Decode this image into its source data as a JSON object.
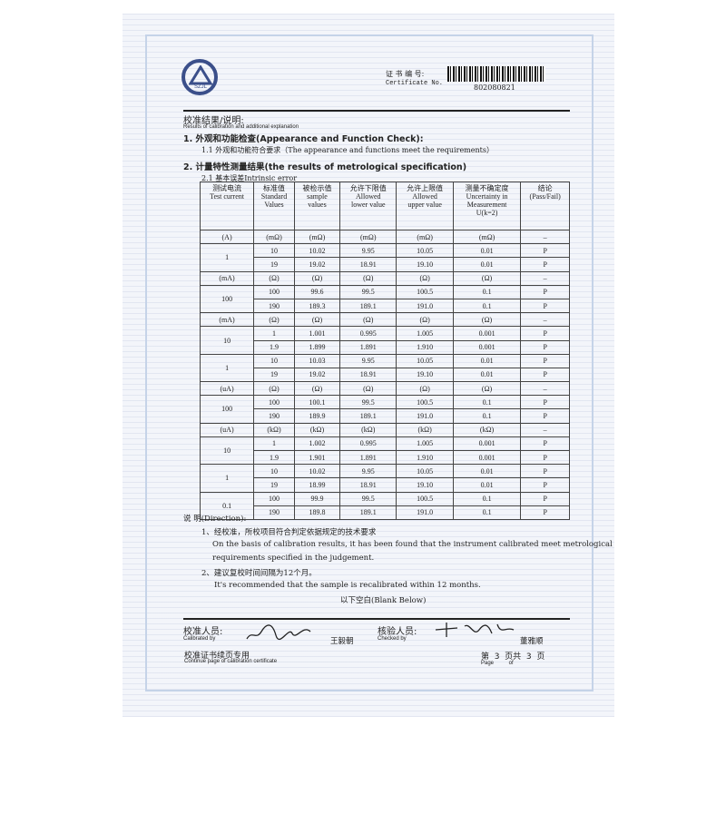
{
  "header": {
    "logo_text": "SZJL",
    "cert_label_cn": "证 书 编 号:",
    "cert_label_en": "Certificate No.",
    "cert_number": "802080821"
  },
  "results": {
    "title_cn": "校准结果/说明:",
    "title_en": "Results of calibration and additional explanation",
    "s1": "1. 外观和功能检查(Appearance and Function Check):",
    "s1_1": "1.1  外观和功能符合要求（The appearance and functions meet the requirements）",
    "s2": "2. 计量特性测量结果(the results of metrological specification)",
    "s2_1": "2.1  基本误差Intrinsic error"
  },
  "table": {
    "headers": [
      "测试电流\nTest current",
      "标准值\nStandard\nValues",
      "被检示值\nsample\nvalues",
      "允许下限值\nAllowed\nlower value",
      "允许上限值\nAllowed\nupper value",
      "测量不确定度\nUncertainty in\nMeasurement\nU(k=2)",
      "结论\n(Pass/Fail)"
    ],
    "blocks": [
      {
        "units": [
          "(A)",
          "(mΩ)",
          "(mΩ)",
          "(mΩ)",
          "(mΩ)",
          "(mΩ)",
          "–"
        ],
        "groups": [
          {
            "current": "1",
            "rows": [
              [
                "10",
                "10.02",
                "9.95",
                "10.05",
                "0.01",
                "P"
              ],
              [
                "19",
                "19.02",
                "18.91",
                "19.10",
                "0.01",
                "P"
              ]
            ]
          }
        ]
      },
      {
        "units": [
          "(mA)",
          "(Ω)",
          "(Ω)",
          "(Ω)",
          "(Ω)",
          "(Ω)",
          "–"
        ],
        "groups": [
          {
            "current": "100",
            "rows": [
              [
                "100",
                "99.6",
                "99.5",
                "100.5",
                "0.1",
                "P"
              ],
              [
                "190",
                "189.3",
                "189.1",
                "191.0",
                "0.1",
                "P"
              ]
            ]
          }
        ]
      },
      {
        "units": [
          "(mA)",
          "(Ω)",
          "(Ω)",
          "(Ω)",
          "(Ω)",
          "(Ω)",
          "–"
        ],
        "groups": [
          {
            "current": "10",
            "rows": [
              [
                "1",
                "1.001",
                "0.995",
                "1.005",
                "0.001",
                "P"
              ],
              [
                "1.9",
                "1.899",
                "1.891",
                "1.910",
                "0.001",
                "P"
              ]
            ]
          },
          {
            "current": "1",
            "rows": [
              [
                "10",
                "10.03",
                "9.95",
                "10.05",
                "0.01",
                "P"
              ],
              [
                "19",
                "19.02",
                "18.91",
                "19.10",
                "0.01",
                "P"
              ]
            ]
          }
        ]
      },
      {
        "units": [
          "(uA)",
          "(Ω)",
          "(Ω)",
          "(Ω)",
          "(Ω)",
          "(Ω)",
          "–"
        ],
        "groups": [
          {
            "current": "100",
            "rows": [
              [
                "100",
                "100.1",
                "99.5",
                "100.5",
                "0.1",
                "P"
              ],
              [
                "190",
                "189.9",
                "189.1",
                "191.0",
                "0.1",
                "P"
              ]
            ]
          }
        ]
      },
      {
        "units": [
          "(uA)",
          "(kΩ)",
          "(kΩ)",
          "(kΩ)",
          "(kΩ)",
          "(kΩ)",
          "–"
        ],
        "groups": [
          {
            "current": "10",
            "rows": [
              [
                "1",
                "1.002",
                "0.995",
                "1.005",
                "0.001",
                "P"
              ],
              [
                "1.9",
                "1.901",
                "1.891",
                "1.910",
                "0.001",
                "P"
              ]
            ]
          },
          {
            "current": "1",
            "rows": [
              [
                "10",
                "10.02",
                "9.95",
                "10.05",
                "0.01",
                "P"
              ],
              [
                "19",
                "18.99",
                "18.91",
                "19.10",
                "0.01",
                "P"
              ]
            ]
          },
          {
            "current": "0.1",
            "rows": [
              [
                "100",
                "99.9",
                "99.5",
                "100.5",
                "0.1",
                "P"
              ],
              [
                "190",
                "189.8",
                "189.1",
                "191.0",
                "0.1",
                "P"
              ]
            ]
          }
        ]
      }
    ]
  },
  "direction": {
    "title": "说 明(Direction):",
    "item1_cn": "1、经校准，所校项目符合判定依据规定的技术要求",
    "item1_en_1": "On the basis of calibration results, it has been found that the instrument calibrated meet metrological",
    "item1_en_2": "requirements specified in the judgement.",
    "item2_cn": "2、建议复校时间间隔为12个月。",
    "item2_en": "It's recommended that the sample is recalibrated within 12 months.",
    "blank": "以下空白(Blank Below)"
  },
  "footer": {
    "calibrated_cn": "校准人员:",
    "calibrated_en": "Calibrated by",
    "calibrator_name": "王毅朝",
    "checked_cn": "核验人员:",
    "checked_en": "Checked by",
    "checker_name": "董雅顺",
    "continue_cn": "校准证书续页专用",
    "continue_en": "Continue page of calibration certificate",
    "page_label": "第  3  页共  3  页",
    "page_en": "Page          of"
  }
}
